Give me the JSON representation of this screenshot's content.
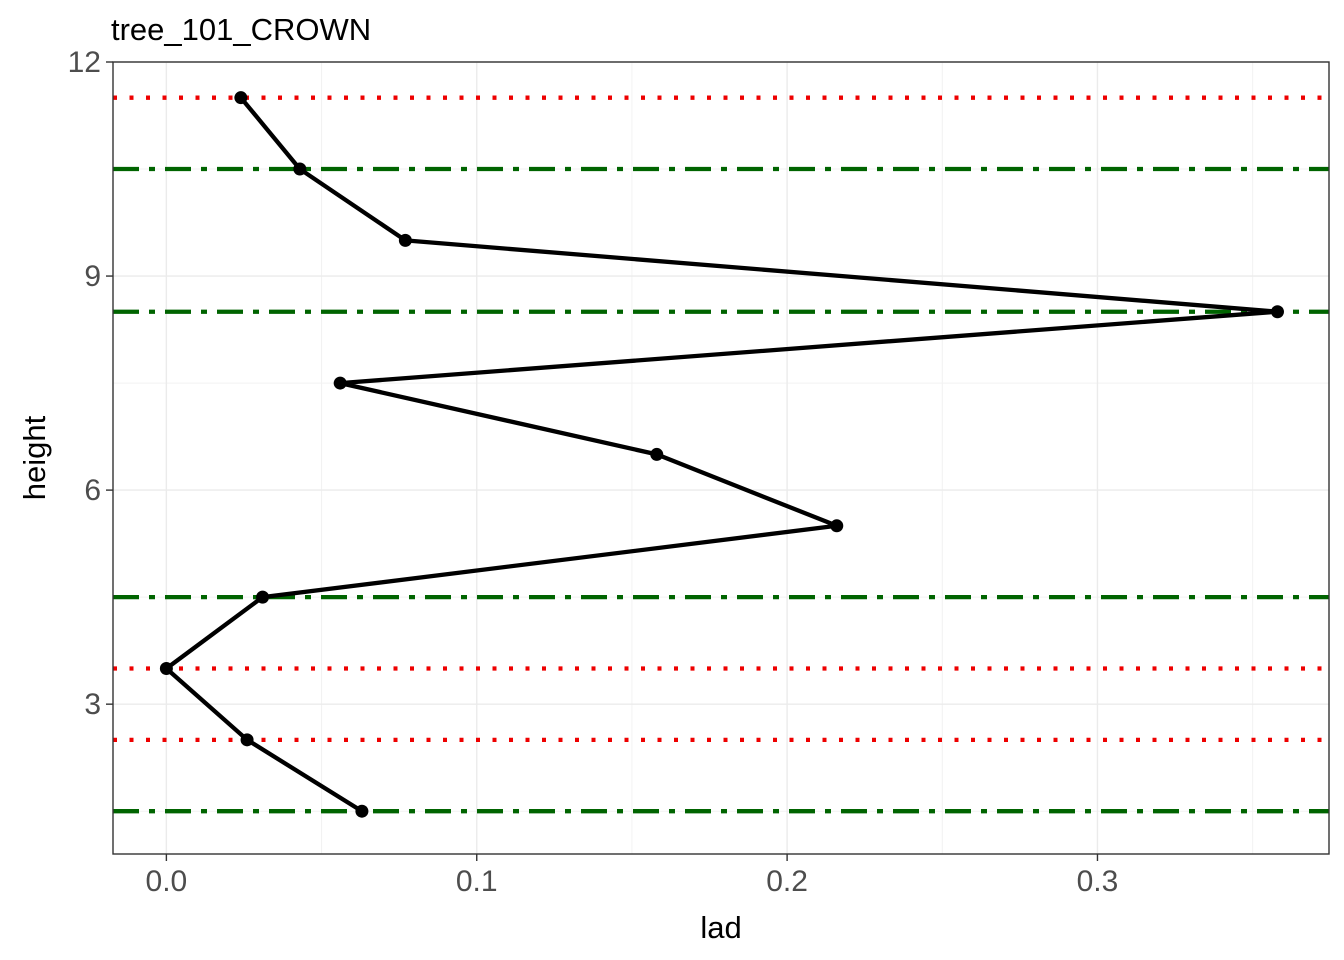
{
  "chart_data": {
    "type": "line",
    "title": "tree_101_CROWN",
    "xlabel": "lad",
    "ylabel": "height",
    "xlim": [
      -0.0172,
      0.3746
    ],
    "ylim": [
      0.9,
      12.0
    ],
    "x_ticks": [
      0.0,
      0.1,
      0.2,
      0.3
    ],
    "x_tick_labels": [
      "0.0",
      "0.1",
      "0.2",
      "0.3"
    ],
    "y_ticks": [
      3,
      6,
      9,
      12
    ],
    "y_tick_labels": [
      "3",
      "6",
      "9",
      "12"
    ],
    "grid": true,
    "series": [
      {
        "color": "#000000",
        "points": [
          {
            "x": 0.063,
            "y": 1.5
          },
          {
            "x": 0.026,
            "y": 2.5
          },
          {
            "x": 0.0,
            "y": 3.5
          },
          {
            "x": 0.031,
            "y": 4.5
          },
          {
            "x": 0.216,
            "y": 5.5
          },
          {
            "x": 0.158,
            "y": 6.5
          },
          {
            "x": 0.056,
            "y": 7.5
          },
          {
            "x": 0.358,
            "y": 8.5
          },
          {
            "x": 0.077,
            "y": 9.5
          },
          {
            "x": 0.043,
            "y": 10.5
          },
          {
            "x": 0.024,
            "y": 11.5
          }
        ]
      }
    ],
    "reference_lines": {
      "dotted_red": {
        "color": "#ee0000",
        "y": [
          2.5,
          3.5,
          11.5
        ]
      },
      "dashdot_green": {
        "color": "#006400",
        "y": [
          1.5,
          4.5,
          8.5,
          10.5
        ]
      }
    }
  }
}
